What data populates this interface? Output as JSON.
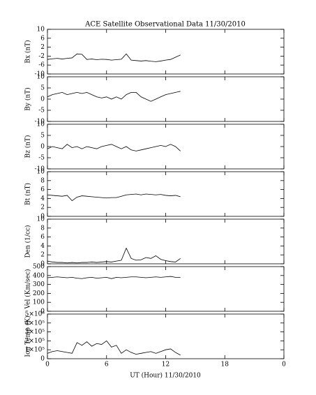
{
  "chart_data": [
    {
      "type": "line",
      "title": "ACE Satellite Observational Data   11/30/2010",
      "ylabel": "Bx (nT)",
      "color": "#000000",
      "xlim": [
        0,
        24
      ],
      "ylim": [
        -10,
        10
      ],
      "yticks": [
        -10,
        -6,
        -2,
        2,
        6,
        10
      ],
      "x": [
        0,
        0.5,
        1,
        1.5,
        2,
        2.5,
        3,
        3.5,
        4,
        4.5,
        5,
        5.5,
        6,
        6.5,
        7,
        7.5,
        8,
        8.5,
        9,
        9.5,
        10,
        10.5,
        11,
        11.5,
        12,
        12.5,
        13,
        13.5
      ],
      "values": [
        -3.5,
        -3.2,
        -3,
        -3.3,
        -3,
        -2.8,
        -1,
        -1.2,
        -3.5,
        -3.3,
        -3.6,
        -3.4,
        -3.5,
        -3.8,
        -3.6,
        -3.4,
        -1,
        -3.8,
        -4,
        -4.2,
        -4,
        -4.3,
        -4.5,
        -4.2,
        -3.8,
        -3.5,
        -2.5,
        -1.5
      ]
    },
    {
      "type": "line",
      "ylabel": "By (nT)",
      "color": "#000000",
      "xlim": [
        0,
        24
      ],
      "ylim": [
        -10,
        10
      ],
      "yticks": [
        -10,
        -5,
        0,
        5,
        10
      ],
      "x": [
        0,
        0.5,
        1,
        1.5,
        2,
        2.5,
        3,
        3.5,
        4,
        4.5,
        5,
        5.5,
        6,
        6.5,
        7,
        7.5,
        8,
        8.5,
        9,
        9.5,
        10,
        10.5,
        11,
        11.5,
        12,
        12.5,
        13,
        13.5
      ],
      "values": [
        1,
        2,
        2.5,
        3,
        2,
        2.5,
        3,
        2.5,
        3,
        2,
        1,
        0.5,
        1,
        0,
        1,
        0,
        2,
        3,
        3,
        1,
        0,
        -1,
        0,
        1,
        2,
        2.5,
        3,
        3.5
      ]
    },
    {
      "type": "line",
      "ylabel": "Bz (nT)",
      "color": "#000000",
      "xlim": [
        0,
        24
      ],
      "ylim": [
        -10,
        10
      ],
      "yticks": [
        -10,
        -5,
        0,
        5,
        10
      ],
      "x": [
        0,
        0.5,
        1,
        1.5,
        2,
        2.5,
        3,
        3.5,
        4,
        4.5,
        5,
        5.5,
        6,
        6.5,
        7,
        7.5,
        8,
        8.5,
        9,
        9.5,
        10,
        10.5,
        11,
        11.5,
        12,
        12.5,
        13,
        13.5
      ],
      "values": [
        -1,
        0,
        -0.5,
        -1,
        1,
        -0.5,
        0,
        -1,
        0,
        -0.5,
        -1,
        0,
        0.5,
        1,
        0,
        -1,
        0,
        -1.5,
        -2,
        -1.5,
        -1,
        -0.5,
        0,
        0.5,
        0,
        1,
        0,
        -2
      ]
    },
    {
      "type": "line",
      "ylabel": "Bt (nT)",
      "color": "#000000",
      "xlim": [
        0,
        24
      ],
      "ylim": [
        0,
        10
      ],
      "yticks": [
        0,
        2,
        4,
        6,
        8,
        10
      ],
      "x": [
        0,
        0.5,
        1,
        1.5,
        2,
        2.5,
        3,
        3.5,
        4,
        4.5,
        5,
        5.5,
        6,
        6.5,
        7,
        7.5,
        8,
        8.5,
        9,
        9.5,
        10,
        10.5,
        11,
        11.5,
        12,
        12.5,
        13,
        13.5
      ],
      "values": [
        4.8,
        4.7,
        4.6,
        4.5,
        4.7,
        3.5,
        4.3,
        4.6,
        4.5,
        4.4,
        4.3,
        4.2,
        4.1,
        4.2,
        4.2,
        4.5,
        4.8,
        4.9,
        5,
        4.8,
        5,
        4.9,
        4.8,
        4.9,
        4.7,
        4.6,
        4.7,
        4.4
      ]
    },
    {
      "type": "line",
      "ylabel": "Den (1/cc)",
      "color": "#000000",
      "xlim": [
        0,
        24
      ],
      "ylim": [
        0,
        10
      ],
      "yticks": [
        0,
        2,
        4,
        6,
        8,
        10
      ],
      "x": [
        0,
        0.5,
        1,
        1.5,
        2,
        2.5,
        3,
        3.5,
        4,
        4.5,
        5,
        5.5,
        6,
        6.5,
        7,
        7.5,
        8,
        8.5,
        9,
        9.5,
        10,
        10.5,
        11,
        11.5,
        12,
        12.5,
        13,
        13.5
      ],
      "values": [
        0.6,
        0.4,
        0.3,
        0.3,
        0.2,
        0.3,
        0.2,
        0.3,
        0.3,
        0.4,
        0.3,
        0.4,
        0.5,
        0.4,
        0.6,
        0.8,
        3.5,
        1.2,
        0.8,
        0.9,
        1.4,
        1.2,
        1.8,
        1,
        0.7,
        0.5,
        0.4,
        1.2
      ]
    },
    {
      "type": "line",
      "ylabel": "Vel (Km/sec)",
      "color": "#000000",
      "xlim": [
        0,
        24
      ],
      "ylim": [
        0,
        500
      ],
      "yticks": [
        0,
        100,
        200,
        300,
        400,
        500
      ],
      "x": [
        0,
        0.5,
        1,
        1.5,
        2,
        2.5,
        3,
        3.5,
        4,
        4.5,
        5,
        5.5,
        6,
        6.5,
        7,
        7.5,
        8,
        8.5,
        9,
        9.5,
        10,
        10.5,
        11,
        11.5,
        12,
        12.5,
        13,
        13.5
      ],
      "values": [
        375,
        380,
        385,
        380,
        375,
        380,
        370,
        365,
        375,
        380,
        370,
        375,
        380,
        365,
        380,
        375,
        380,
        385,
        385,
        380,
        375,
        380,
        385,
        380,
        385,
        390,
        380,
        380
      ]
    },
    {
      "type": "line",
      "ylabel": "Ion Temp (K)",
      "color": "#000000",
      "xlabel": "UT (Hour)   11/30/2010",
      "xlim": [
        0,
        24
      ],
      "xticks": [
        0,
        6,
        12,
        18,
        {
          "value": 24,
          "label": "0"
        }
      ],
      "ylim": [
        0,
        500000
      ],
      "yticks": [
        0,
        {
          "value": 100000,
          "label": "1×10⁵"
        },
        {
          "value": 200000,
          "label": "2×10⁵"
        },
        {
          "value": 300000,
          "label": "3×10⁵"
        },
        {
          "value": 400000,
          "label": "4×10⁵"
        },
        {
          "value": 500000,
          "label": "5×10⁵"
        }
      ],
      "x": [
        0,
        0.5,
        1,
        1.5,
        2,
        2.5,
        3,
        3.5,
        4,
        4.5,
        5,
        5.5,
        6,
        6.5,
        7,
        7.5,
        8,
        8.5,
        9,
        9.5,
        10,
        10.5,
        11,
        11.5,
        12,
        12.5,
        13,
        13.5
      ],
      "values": [
        60000,
        80000,
        90000,
        80000,
        70000,
        60000,
        180000,
        150000,
        190000,
        140000,
        170000,
        160000,
        200000,
        130000,
        150000,
        60000,
        100000,
        70000,
        50000,
        60000,
        70000,
        80000,
        60000,
        80000,
        100000,
        110000,
        70000,
        40000
      ]
    }
  ]
}
